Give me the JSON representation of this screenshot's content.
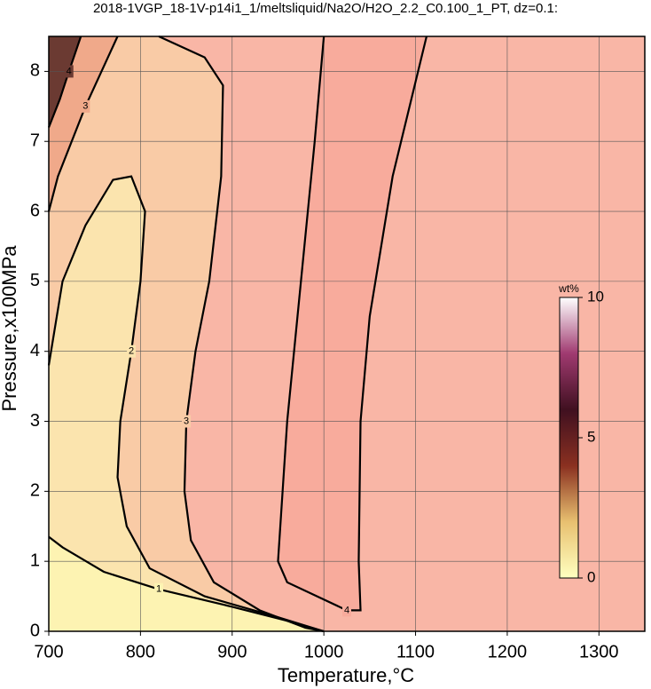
{
  "chart_data": {
    "type": "contour",
    "title": "2018-1VGP_18-1V-p14i1_1/meltsliquid/Na2O/H2O_2.2_C0.100_1_PT, dz=0.1:",
    "x_label": "Temperature,°C",
    "y_label": "Pressure,x100MPa",
    "xlim": [
      700,
      1350
    ],
    "ylim": [
      0,
      8.5
    ],
    "xticks": [
      700,
      800,
      900,
      1000,
      1100,
      1200,
      1300
    ],
    "yticks": [
      0,
      1,
      2,
      3,
      4,
      5,
      6,
      7,
      8
    ],
    "grid": true,
    "background": "#f9b6a6",
    "series": [
      {
        "level": 4,
        "fill": "#f8ab9c",
        "fill_to": "closed",
        "x": [
          1000,
          990,
          975,
          960,
          955,
          950,
          960,
          1025,
          1040,
          1038,
          1040,
          1050,
          1075,
          1112
        ],
        "y": [
          8.5,
          7,
          5,
          3,
          2,
          1,
          0.7,
          0.3,
          0.3,
          1,
          3,
          4.5,
          6.5,
          8.5
        ]
      },
      {
        "level": 3,
        "fill": "#f9cba6",
        "fill_to": "left",
        "x": [
          820,
          870,
          890,
          888,
          875,
          860,
          850,
          848,
          855,
          880,
          930,
          980,
          1000
        ],
        "y": [
          8.5,
          8.2,
          7.8,
          6.5,
          5,
          4,
          3,
          2,
          1.3,
          0.7,
          0.3,
          0.05,
          0
        ]
      },
      {
        "level": 2,
        "fill": "#fbe4ae",
        "fill_to": "bottom-left",
        "x": [
          700,
          715,
          740,
          770,
          790,
          805,
          800,
          790,
          778,
          775,
          785,
          810,
          870,
          950,
          1000
        ],
        "y": [
          3.8,
          5,
          5.8,
          6.45,
          6.5,
          6,
          5,
          4,
          3,
          2.2,
          1.5,
          0.9,
          0.5,
          0.2,
          0
        ]
      },
      {
        "level": 1,
        "fill": "#fdf3b2",
        "fill_to": "bottom-left",
        "x": [
          700,
          715,
          760,
          820,
          900,
          960,
          1000
        ],
        "y": [
          1.35,
          1.2,
          0.85,
          0.6,
          0.35,
          0.15,
          0
        ]
      },
      {
        "level": 3,
        "fill": "#f0a98a",
        "fill_to": "top-left",
        "x": [
          700,
          710,
          740,
          775
        ],
        "y": [
          6,
          6.5,
          7.5,
          8.5
        ]
      },
      {
        "level": 4,
        "fill": "#6b3a32",
        "fill_to": "top-left",
        "x": [
          700,
          712,
          722,
          735
        ],
        "y": [
          7.2,
          7.6,
          8,
          8.5
        ]
      }
    ],
    "colorbar": {
      "title": "wt%",
      "lim": [
        0,
        10
      ],
      "ticks": [
        0,
        5,
        10
      ],
      "colors": [
        "#ffffc0",
        "#e8c070",
        "#8a3020",
        "#401020",
        "#a03a70",
        "#ffffff"
      ]
    }
  }
}
